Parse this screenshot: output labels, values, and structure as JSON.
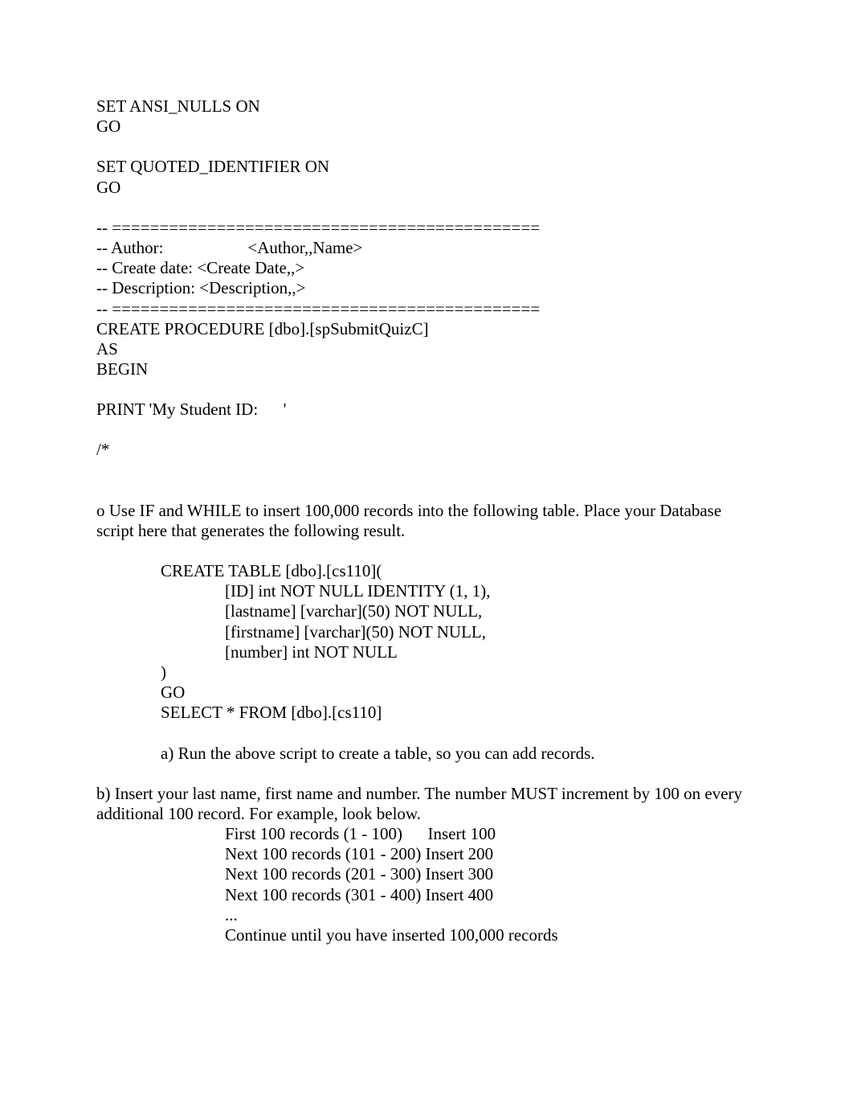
{
  "header": {
    "l1": "SET ANSI_NULLS ON",
    "l2": "GO",
    "l3": "SET QUOTED_IDENTIFIER ON",
    "l4": "GO",
    "sep": "-- =============================================",
    "author": "-- Author:                    <Author,,Name>",
    "create_date": "-- Create date: <Create Date,,>",
    "description": "-- Description: <Description,,>",
    "create_proc": "CREATE PROCEDURE [dbo].[spSubmitQuizC]",
    "as": "AS",
    "begin": "BEGIN",
    "print": "PRINT 'My Student ID:      '",
    "comment_open": "/*"
  },
  "task": {
    "intro": "o          Use IF and WHILE to insert 100,000 records into the following table.         Place your Database script here that generates the following result.",
    "ct1": "CREATE TABLE [dbo].[cs110](",
    "ct2": "[ID] int NOT NULL IDENTITY (1, 1),",
    "ct3": "[lastname] [varchar](50) NOT NULL,",
    "ct4": "[firstname] [varchar](50) NOT NULL,",
    "ct5": "[number] int NOT NULL",
    "ct6": ")",
    "ct7": "GO",
    "ct8": "SELECT * FROM [dbo].[cs110]",
    "step_a": "a) Run the above script to create a table, so you can add records.",
    "step_b": "          b) Insert your last name, first name and number.         The number MUST increment by 100 on every additional 100 record. For example, look below.",
    "r1": "First 100 records (1 - 100)      Insert 100",
    "r2": "Next 100 records (101 - 200) Insert 200",
    "r3": "Next 100 records (201 - 300) Insert 300",
    "r4": "Next 100 records (301 - 400) Insert 400",
    "r5": "...",
    "r6": "Continue until you have inserted 100,000 records"
  }
}
